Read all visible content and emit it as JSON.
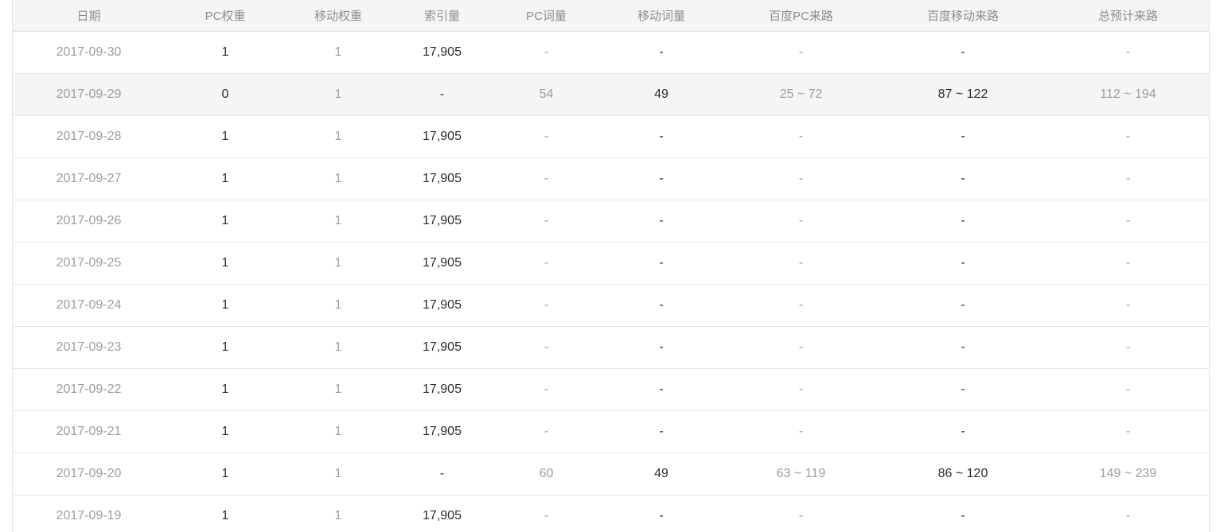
{
  "colors": {
    "page_background": "#ffffff",
    "header_background": "#f5f5f5",
    "highlight_row_background": "#f5f5f5",
    "border": "#e2e2e2",
    "row_border": "#e7e7e7",
    "header_text": "#8d8d8d",
    "muted_text": "#9d9d9d",
    "strong_text": "#2d2d2d"
  },
  "table": {
    "columns": [
      {
        "key": "date",
        "label": "日期",
        "tone": "muted"
      },
      {
        "key": "pc_weight",
        "label": "PC权重",
        "tone": "strong"
      },
      {
        "key": "mobile_weight",
        "label": "移动权重",
        "tone": "muted"
      },
      {
        "key": "index_volume",
        "label": "索引量",
        "tone": "strong"
      },
      {
        "key": "pc_words",
        "label": "PC词量",
        "tone": "muted"
      },
      {
        "key": "mobile_words",
        "label": "移动词量",
        "tone": "strong"
      },
      {
        "key": "baidu_pc_traffic",
        "label": "百度PC来路",
        "tone": "muted"
      },
      {
        "key": "baidu_mobile_traffic",
        "label": "百度移动来路",
        "tone": "strong"
      },
      {
        "key": "total_estimated_traffic",
        "label": "总预计来路",
        "tone": "muted"
      }
    ],
    "rows": [
      {
        "date": "2017-09-30",
        "pc_weight": "1",
        "mobile_weight": "1",
        "index_volume": "17,905",
        "pc_words": "-",
        "mobile_words": "-",
        "baidu_pc_traffic": "-",
        "baidu_mobile_traffic": "-",
        "total_estimated_traffic": "-",
        "highlighted": false
      },
      {
        "date": "2017-09-29",
        "pc_weight": "0",
        "mobile_weight": "1",
        "index_volume": "-",
        "pc_words": "54",
        "mobile_words": "49",
        "baidu_pc_traffic": "25 ~ 72",
        "baidu_mobile_traffic": "87 ~ 122",
        "total_estimated_traffic": "112 ~ 194",
        "highlighted": true
      },
      {
        "date": "2017-09-28",
        "pc_weight": "1",
        "mobile_weight": "1",
        "index_volume": "17,905",
        "pc_words": "-",
        "mobile_words": "-",
        "baidu_pc_traffic": "-",
        "baidu_mobile_traffic": "-",
        "total_estimated_traffic": "-",
        "highlighted": false
      },
      {
        "date": "2017-09-27",
        "pc_weight": "1",
        "mobile_weight": "1",
        "index_volume": "17,905",
        "pc_words": "-",
        "mobile_words": "-",
        "baidu_pc_traffic": "-",
        "baidu_mobile_traffic": "-",
        "total_estimated_traffic": "-",
        "highlighted": false
      },
      {
        "date": "2017-09-26",
        "pc_weight": "1",
        "mobile_weight": "1",
        "index_volume": "17,905",
        "pc_words": "-",
        "mobile_words": "-",
        "baidu_pc_traffic": "-",
        "baidu_mobile_traffic": "-",
        "total_estimated_traffic": "-",
        "highlighted": false
      },
      {
        "date": "2017-09-25",
        "pc_weight": "1",
        "mobile_weight": "1",
        "index_volume": "17,905",
        "pc_words": "-",
        "mobile_words": "-",
        "baidu_pc_traffic": "-",
        "baidu_mobile_traffic": "-",
        "total_estimated_traffic": "-",
        "highlighted": false
      },
      {
        "date": "2017-09-24",
        "pc_weight": "1",
        "mobile_weight": "1",
        "index_volume": "17,905",
        "pc_words": "-",
        "mobile_words": "-",
        "baidu_pc_traffic": "-",
        "baidu_mobile_traffic": "-",
        "total_estimated_traffic": "-",
        "highlighted": false
      },
      {
        "date": "2017-09-23",
        "pc_weight": "1",
        "mobile_weight": "1",
        "index_volume": "17,905",
        "pc_words": "-",
        "mobile_words": "-",
        "baidu_pc_traffic": "-",
        "baidu_mobile_traffic": "-",
        "total_estimated_traffic": "-",
        "highlighted": false
      },
      {
        "date": "2017-09-22",
        "pc_weight": "1",
        "mobile_weight": "1",
        "index_volume": "17,905",
        "pc_words": "-",
        "mobile_words": "-",
        "baidu_pc_traffic": "-",
        "baidu_mobile_traffic": "-",
        "total_estimated_traffic": "-",
        "highlighted": false
      },
      {
        "date": "2017-09-21",
        "pc_weight": "1",
        "mobile_weight": "1",
        "index_volume": "17,905",
        "pc_words": "-",
        "mobile_words": "-",
        "baidu_pc_traffic": "-",
        "baidu_mobile_traffic": "-",
        "total_estimated_traffic": "-",
        "highlighted": false
      },
      {
        "date": "2017-09-20",
        "pc_weight": "1",
        "mobile_weight": "1",
        "index_volume": "-",
        "pc_words": "60",
        "mobile_words": "49",
        "baidu_pc_traffic": "63 ~ 119",
        "baidu_mobile_traffic": "86 ~ 120",
        "total_estimated_traffic": "149 ~ 239",
        "highlighted": false
      },
      {
        "date": "2017-09-19",
        "pc_weight": "1",
        "mobile_weight": "1",
        "index_volume": "17,905",
        "pc_words": "-",
        "mobile_words": "-",
        "baidu_pc_traffic": "-",
        "baidu_mobile_traffic": "-",
        "total_estimated_traffic": "-",
        "highlighted": false
      }
    ]
  }
}
